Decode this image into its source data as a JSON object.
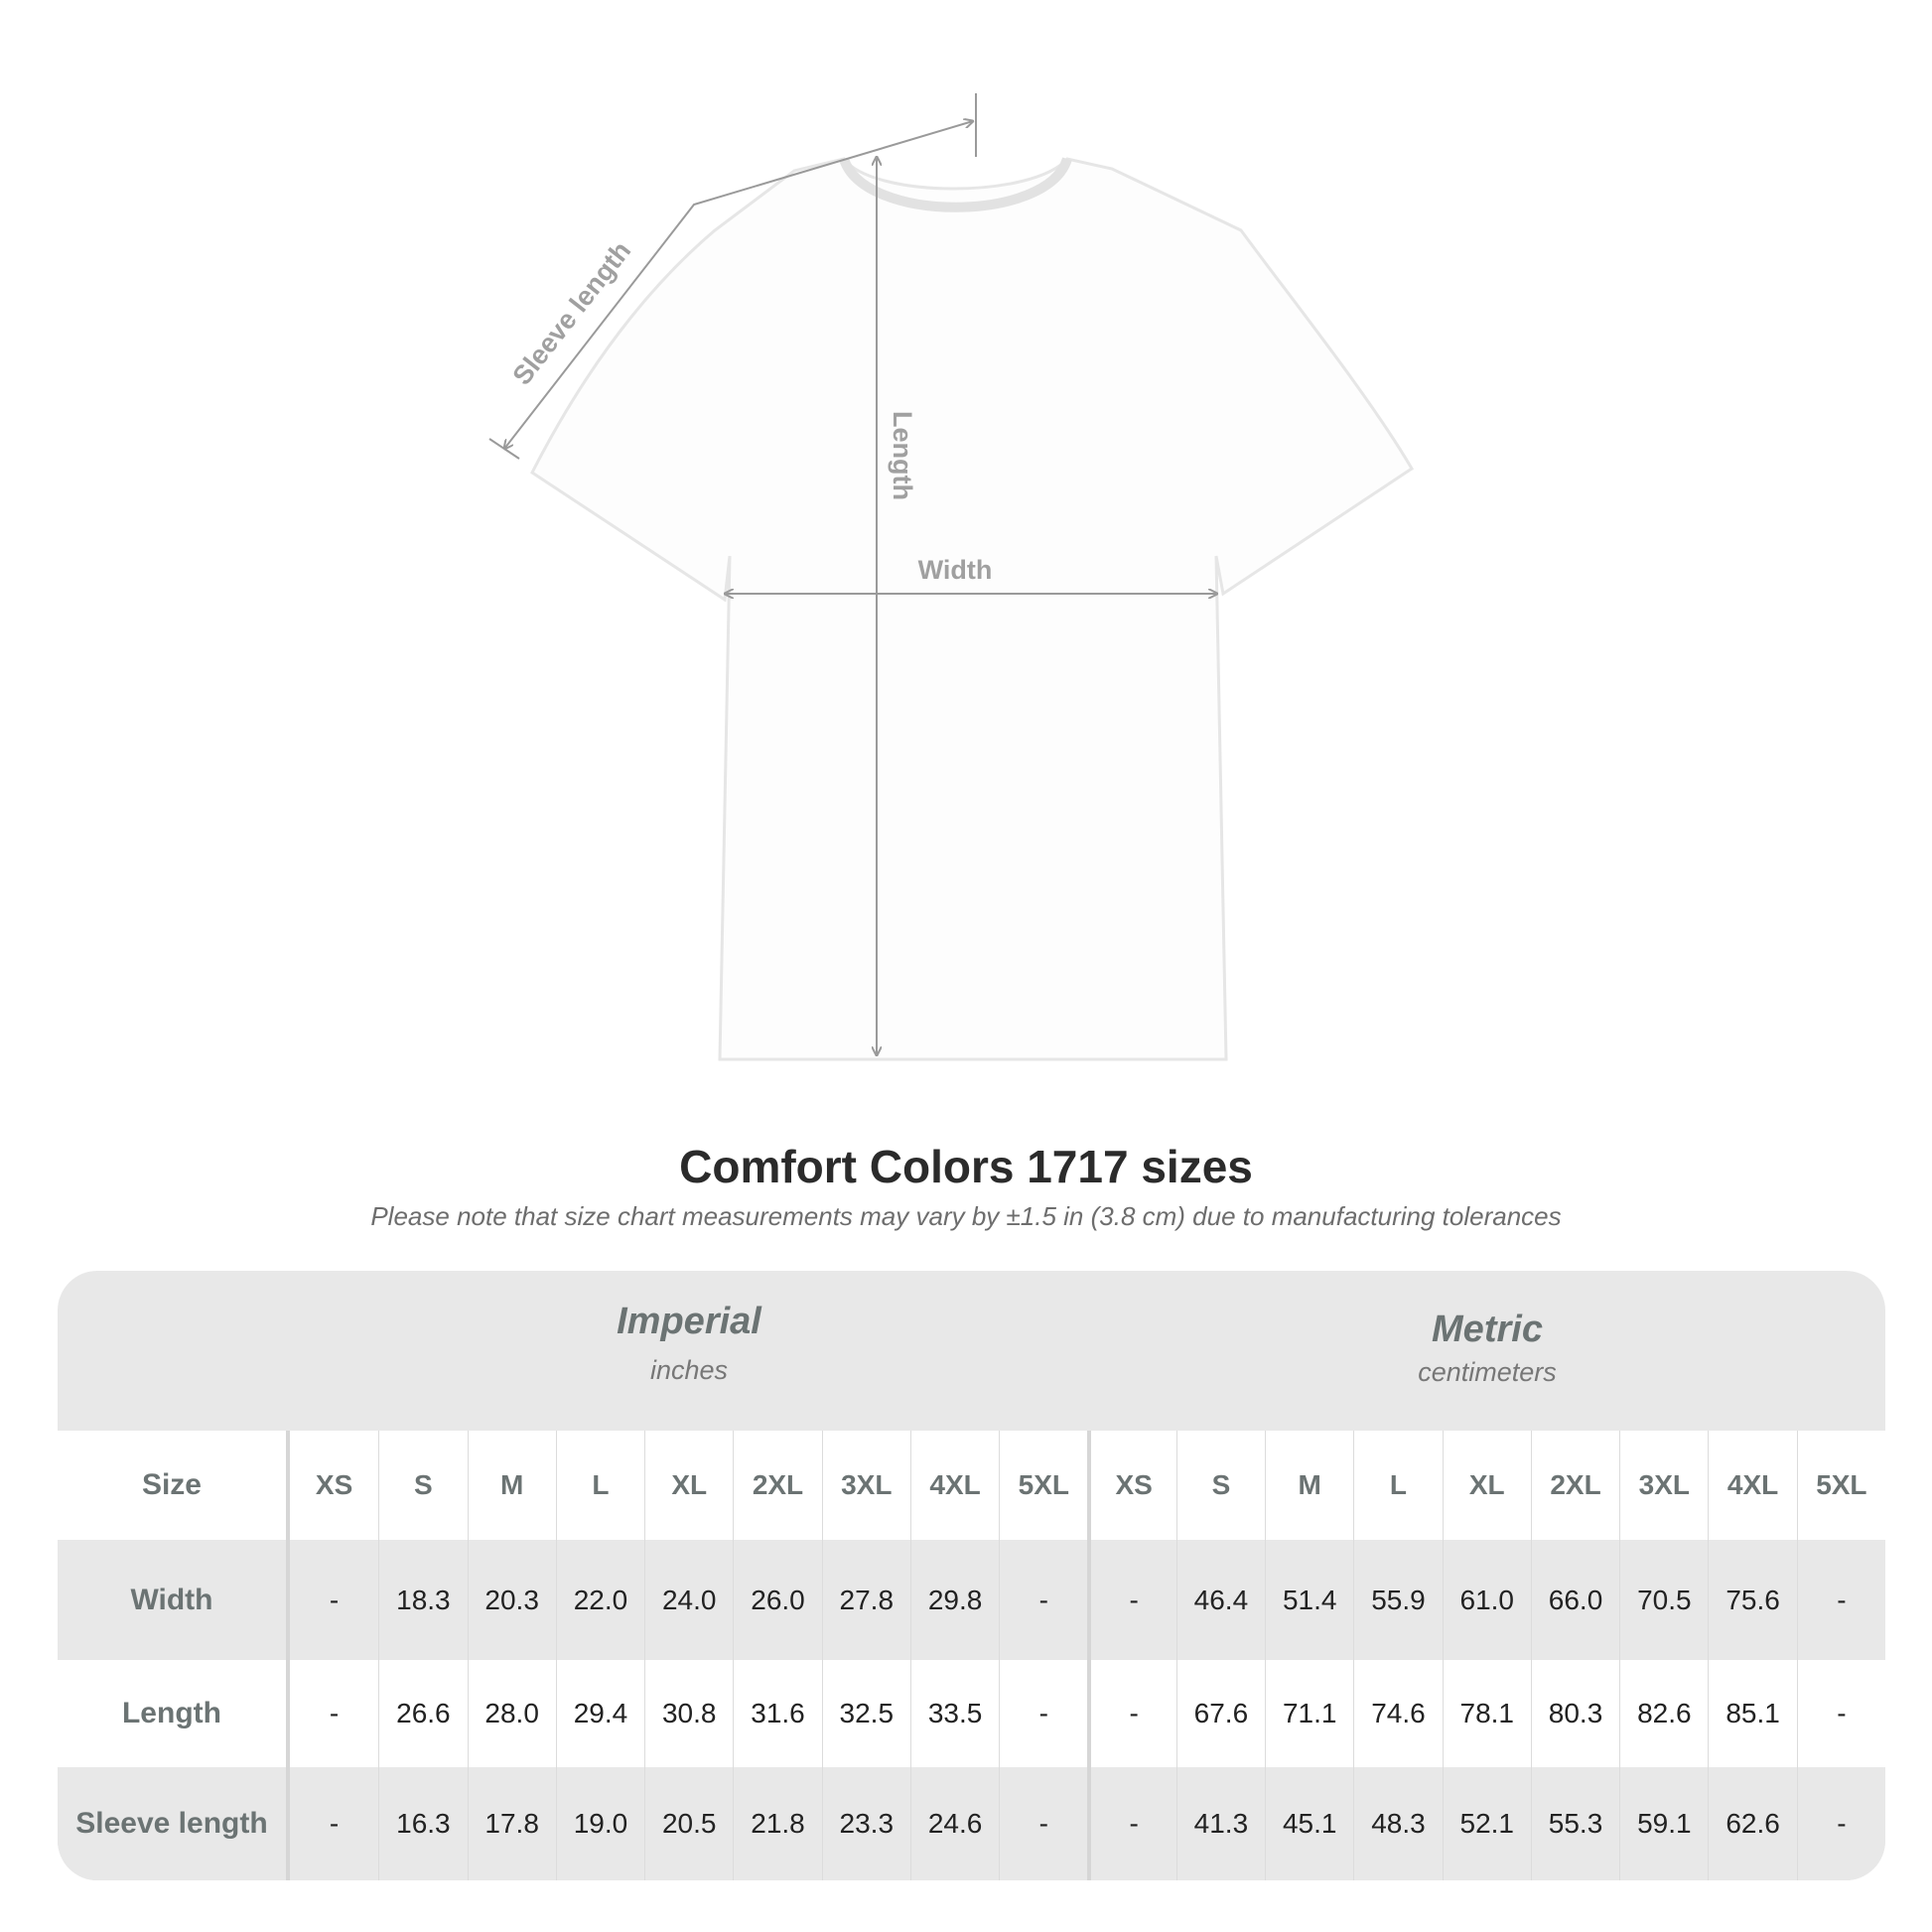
{
  "diagram": {
    "labels": {
      "sleeve": "Sleeve length",
      "length": "Length",
      "width": "Width"
    },
    "line_color": "#9a9a9a"
  },
  "title": "Comfort Colors 1717 sizes",
  "note": "Please note that size chart measurements may vary by ±1.5 in (3.8 cm) due to manufacturing tolerances",
  "table": {
    "imperial": {
      "title": "Imperial",
      "unit": "inches"
    },
    "metric": {
      "title": "Metric",
      "unit": "centimeters"
    },
    "size_label": "Size",
    "sizes": [
      "XS",
      "S",
      "M",
      "L",
      "XL",
      "2XL",
      "3XL",
      "4XL",
      "5XL"
    ],
    "rows": [
      {
        "label": "Width",
        "imperial": [
          "-",
          "18.3",
          "20.3",
          "22.0",
          "24.0",
          "26.0",
          "27.8",
          "29.8",
          "-"
        ],
        "metric": [
          "-",
          "46.4",
          "51.4",
          "55.9",
          "61.0",
          "66.0",
          "70.5",
          "75.6",
          "-"
        ]
      },
      {
        "label": "Length",
        "imperial": [
          "-",
          "26.6",
          "28.0",
          "29.4",
          "30.8",
          "31.6",
          "32.5",
          "33.5",
          "-"
        ],
        "metric": [
          "-",
          "67.6",
          "71.1",
          "74.6",
          "78.1",
          "80.3",
          "82.6",
          "85.1",
          "-"
        ]
      },
      {
        "label": "Sleeve length",
        "imperial": [
          "-",
          "16.3",
          "17.8",
          "19.0",
          "20.5",
          "21.8",
          "23.3",
          "24.6",
          "-"
        ],
        "metric": [
          "-",
          "41.3",
          "45.1",
          "48.3",
          "52.1",
          "55.3",
          "59.1",
          "62.6",
          "-"
        ]
      }
    ]
  }
}
